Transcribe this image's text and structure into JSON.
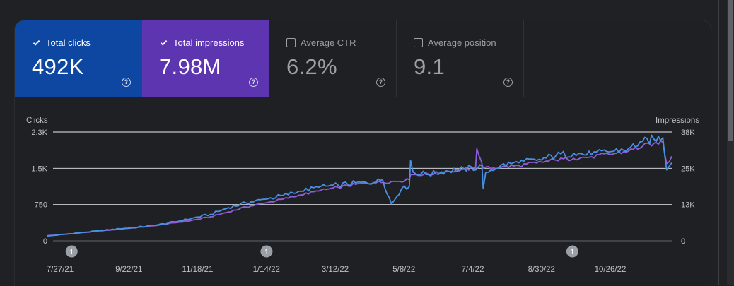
{
  "metrics": [
    {
      "label": "Total clicks",
      "value": "492K",
      "checked": true,
      "color": "#0d47a1"
    },
    {
      "label": "Total impressions",
      "value": "7.98M",
      "checked": true,
      "color": "#5e35b1"
    },
    {
      "label": "Average CTR",
      "value": "6.2%",
      "checked": false
    },
    {
      "label": "Average position",
      "value": "9.1",
      "checked": false
    }
  ],
  "help_glyph": "?",
  "chart_data": {
    "type": "line",
    "left_axis": {
      "label": "Clicks",
      "ticks": [
        "0",
        "750",
        "1.5K",
        "2.3K"
      ],
      "ylim": [
        0,
        2300
      ]
    },
    "right_axis": {
      "label": "Impressions",
      "ticks": [
        "0",
        "13K",
        "25K",
        "38K"
      ],
      "ylim": [
        0,
        38000
      ]
    },
    "x_tick_labels": [
      "7/27/21",
      "9/22/21",
      "11/18/21",
      "1/14/22",
      "3/12/22",
      "5/8/22",
      "7/4/22",
      "8/30/22",
      "10/26/22"
    ],
    "x_range": [
      "2021-07-27",
      "2022-11-29"
    ],
    "annotations": [
      {
        "date": "2021-08-15",
        "label": "1"
      },
      {
        "date": "2022-01-15",
        "label": "1"
      },
      {
        "date": "2022-09-12",
        "label": "1"
      }
    ],
    "series": [
      {
        "name": "Total clicks",
        "axis": "left",
        "color": "#4a90e2",
        "dates": [
          "2021-07-27",
          "2021-08-10",
          "2021-08-25",
          "2021-09-08",
          "2021-09-22",
          "2021-10-06",
          "2021-10-20",
          "2021-11-04",
          "2021-11-18",
          "2021-12-02",
          "2021-12-16",
          "2021-12-30",
          "2022-01-14",
          "2022-01-28",
          "2022-02-11",
          "2022-02-25",
          "2022-03-12",
          "2022-03-26",
          "2022-04-09",
          "2022-04-16",
          "2022-04-23",
          "2022-05-01",
          "2022-05-07",
          "2022-05-08",
          "2022-05-10",
          "2022-05-22",
          "2022-06-05",
          "2022-06-19",
          "2022-06-30",
          "2022-07-03",
          "2022-07-04",
          "2022-07-06",
          "2022-07-18",
          "2022-08-01",
          "2022-08-15",
          "2022-08-30",
          "2022-09-13",
          "2022-09-27",
          "2022-10-11",
          "2022-10-26",
          "2022-11-06",
          "2022-11-15",
          "2022-11-22",
          "2022-11-25",
          "2022-11-29"
        ],
        "values": [
          100,
          140,
          180,
          220,
          255,
          290,
          330,
          400,
          480,
          560,
          700,
          800,
          880,
          960,
          1050,
          1130,
          1180,
          1220,
          1230,
          1300,
          780,
          1100,
          1150,
          1700,
          1450,
          1400,
          1480,
          1520,
          1550,
          1580,
          1100,
          1450,
          1600,
          1650,
          1700,
          1800,
          1850,
          1820,
          1880,
          1950,
          2100,
          2150,
          2180,
          1500,
          1650
        ]
      },
      {
        "name": "Total impressions",
        "axis": "right",
        "color": "#8e5ed8",
        "dates": [
          "2021-07-27",
          "2021-08-10",
          "2021-08-25",
          "2021-09-08",
          "2021-09-22",
          "2021-10-06",
          "2021-10-20",
          "2021-11-04",
          "2021-11-18",
          "2021-12-02",
          "2021-12-16",
          "2021-12-30",
          "2022-01-14",
          "2022-01-28",
          "2022-02-11",
          "2022-02-25",
          "2022-03-12",
          "2022-03-26",
          "2022-04-09",
          "2022-04-23",
          "2022-05-07",
          "2022-05-08",
          "2022-05-22",
          "2022-06-05",
          "2022-06-19",
          "2022-06-28",
          "2022-06-29",
          "2022-07-04",
          "2022-07-18",
          "2022-08-01",
          "2022-08-15",
          "2022-08-30",
          "2022-09-13",
          "2022-09-27",
          "2022-10-11",
          "2022-10-26",
          "2022-11-06",
          "2022-11-15",
          "2022-11-22",
          "2022-11-25",
          "2022-11-29"
        ],
        "values": [
          1800,
          2300,
          2900,
          3500,
          4100,
          4700,
          5300,
          6300,
          7200,
          8400,
          10100,
          11800,
          13200,
          14600,
          16000,
          17400,
          18700,
          19700,
          20300,
          20700,
          21300,
          23100,
          23300,
          24100,
          25000,
          25400,
          32200,
          25300,
          25700,
          26300,
          27200,
          28200,
          28800,
          29400,
          30200,
          31300,
          33000,
          34100,
          34500,
          27000,
          29500
        ]
      }
    ]
  }
}
